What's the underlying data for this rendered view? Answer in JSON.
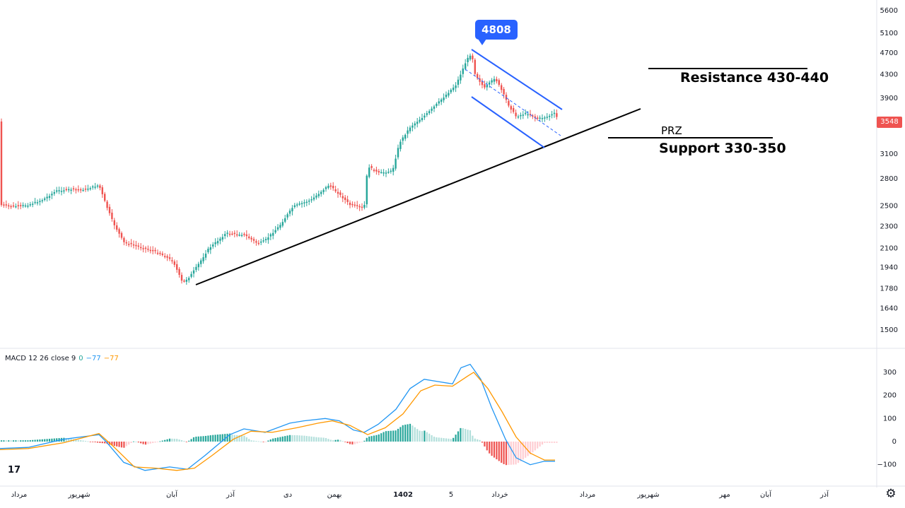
{
  "chart_data": {
    "type": "candlestick",
    "price_axis_ticks": [
      5600,
      5100,
      4700,
      4300,
      3900,
      3100,
      2800,
      2500,
      2300,
      2100,
      1940,
      1780,
      1640,
      1500
    ],
    "current_price": 3548,
    "current_price_label": "3548",
    "peak": {
      "value": 4808,
      "label": "4808"
    },
    "annotations": {
      "resistance": "Resistance 430-440",
      "prz": "PRZ",
      "support": "Support 330-350"
    },
    "time_axis_labels": [
      "مرداد",
      "شهریور",
      "آبان",
      "آذر",
      "دی",
      "بهمن",
      "1402",
      "5",
      "خرداد",
      "مرداد",
      "شهریور",
      "مهر",
      "آبان",
      "آذر"
    ],
    "macd": {
      "label": "MACD 12 26 close 9",
      "values": [
        "0",
        "−77",
        "−77"
      ],
      "ticks": [
        300,
        200,
        100,
        0,
        -100
      ],
      "tick_labels": [
        "300",
        "200",
        "100",
        "0",
        "−100"
      ],
      "colors": {
        "macd": "#2196f3",
        "signal": "#ff9800",
        "hist_up": "#26a69a",
        "hist_down": "#ef5350"
      }
    },
    "colors": {
      "up": "#26a69a",
      "down": "#ef5350",
      "channel": "#2962ff",
      "trendline": "#000000"
    },
    "scale": "log",
    "grid": false
  },
  "logo_text": "17",
  "settings_icon": "gear-icon"
}
